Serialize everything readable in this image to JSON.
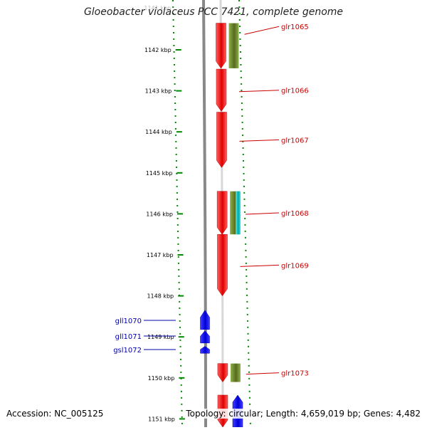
{
  "title": "Gloeobacter violaceus PCC 7421, complete genome",
  "accession_text": "Accession: NC_005125",
  "topology_text": "Topology: circular; Length: 4,659,019 bp; Genes: 4,482",
  "scale": {
    "unit": "kbp",
    "top_partial_label": "1141 kbp",
    "ticks": [
      1142,
      1143,
      1144,
      1145,
      1146,
      1147,
      1148,
      1149,
      1150,
      1151
    ]
  },
  "colors": {
    "forward_gene": "#ff0000",
    "reverse_gene": "#0000ff",
    "feature_green": "#6b8e23",
    "feature_cyan": "#00c8c8",
    "forward_label": "#cc0000",
    "reverse_label": "#0000aa",
    "tick_green": "#008800",
    "backbone": "#888888"
  },
  "genes": [
    {
      "name": "glr1065",
      "strand": "+",
      "start_kbp": 1141.35,
      "end_kbp": 1142.45,
      "features": [
        "green"
      ]
    },
    {
      "name": "glr1066",
      "strand": "+",
      "start_kbp": 1142.47,
      "end_kbp": 1143.5,
      "features": []
    },
    {
      "name": "glr1067",
      "strand": "+",
      "start_kbp": 1143.52,
      "end_kbp": 1144.87,
      "features": []
    },
    {
      "name": "glr1068",
      "strand": "+",
      "start_kbp": 1145.45,
      "end_kbp": 1146.5,
      "features": [
        "green",
        "cyan"
      ]
    },
    {
      "name": "glr1069",
      "strand": "+",
      "start_kbp": 1146.5,
      "end_kbp": 1148.0,
      "features": []
    },
    {
      "name": "gll1070",
      "strand": "-",
      "start_kbp": 1148.35,
      "end_kbp": 1148.82,
      "features": []
    },
    {
      "name": "gll1071",
      "strand": "-",
      "start_kbp": 1148.85,
      "end_kbp": 1149.15,
      "features": []
    },
    {
      "name": "gsl1072",
      "strand": "-",
      "start_kbp": 1149.23,
      "end_kbp": 1149.4,
      "features": []
    },
    {
      "name": "glr1073",
      "strand": "+",
      "start_kbp": 1149.65,
      "end_kbp": 1150.1,
      "features": [
        "green"
      ]
    },
    {
      "name": "",
      "strand": "+",
      "start_kbp": 1150.42,
      "end_kbp": 1151.2,
      "features": []
    },
    {
      "name": "",
      "strand": "-",
      "start_kbp": 1150.42,
      "end_kbp": 1151.2,
      "features": []
    }
  ]
}
